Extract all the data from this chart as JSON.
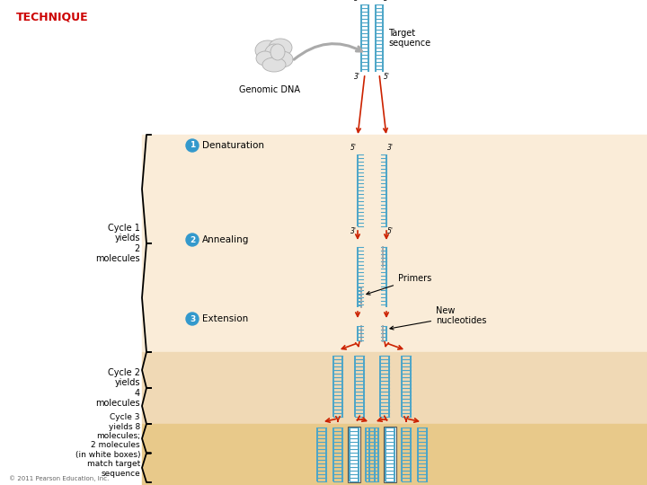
{
  "title": "TECHNIQUE",
  "title_color": "#cc0000",
  "bg_color": "#ffffff",
  "panel1_color": "#faecd8",
  "panel2_color": "#f0d9b5",
  "panel3_color": "#e8c98a",
  "dna_blue": "#4da6c8",
  "dna_gray": "#aaaaaa",
  "arrow_color": "#cc2200",
  "step_circle_color": "#3399cc",
  "step_text_color": "#ffffff",
  "genomic_dna_label": "Genomic DNA",
  "target_sequence_label": "Target\nsequence",
  "step1_label": "Denaturation",
  "step2_label": "Annealing",
  "step3_label": "Extension",
  "cycle1_label": "Cycle 1\nyields\n2\nmolecules",
  "cycle2_label": "Cycle 2\nyields\n4\nmolecules",
  "cycle3_label": "Cycle 3\nyields 8\nmolecules;\n2 molecules\n(in white boxes)\nmatch target\nsequence",
  "primers_label": "Primers",
  "new_nucleotides_label": "New\nnucleotides",
  "copyright": "© 2011 Pearson Education, Inc.",
  "fig_width": 7.2,
  "fig_height": 5.4,
  "dpi": 100
}
